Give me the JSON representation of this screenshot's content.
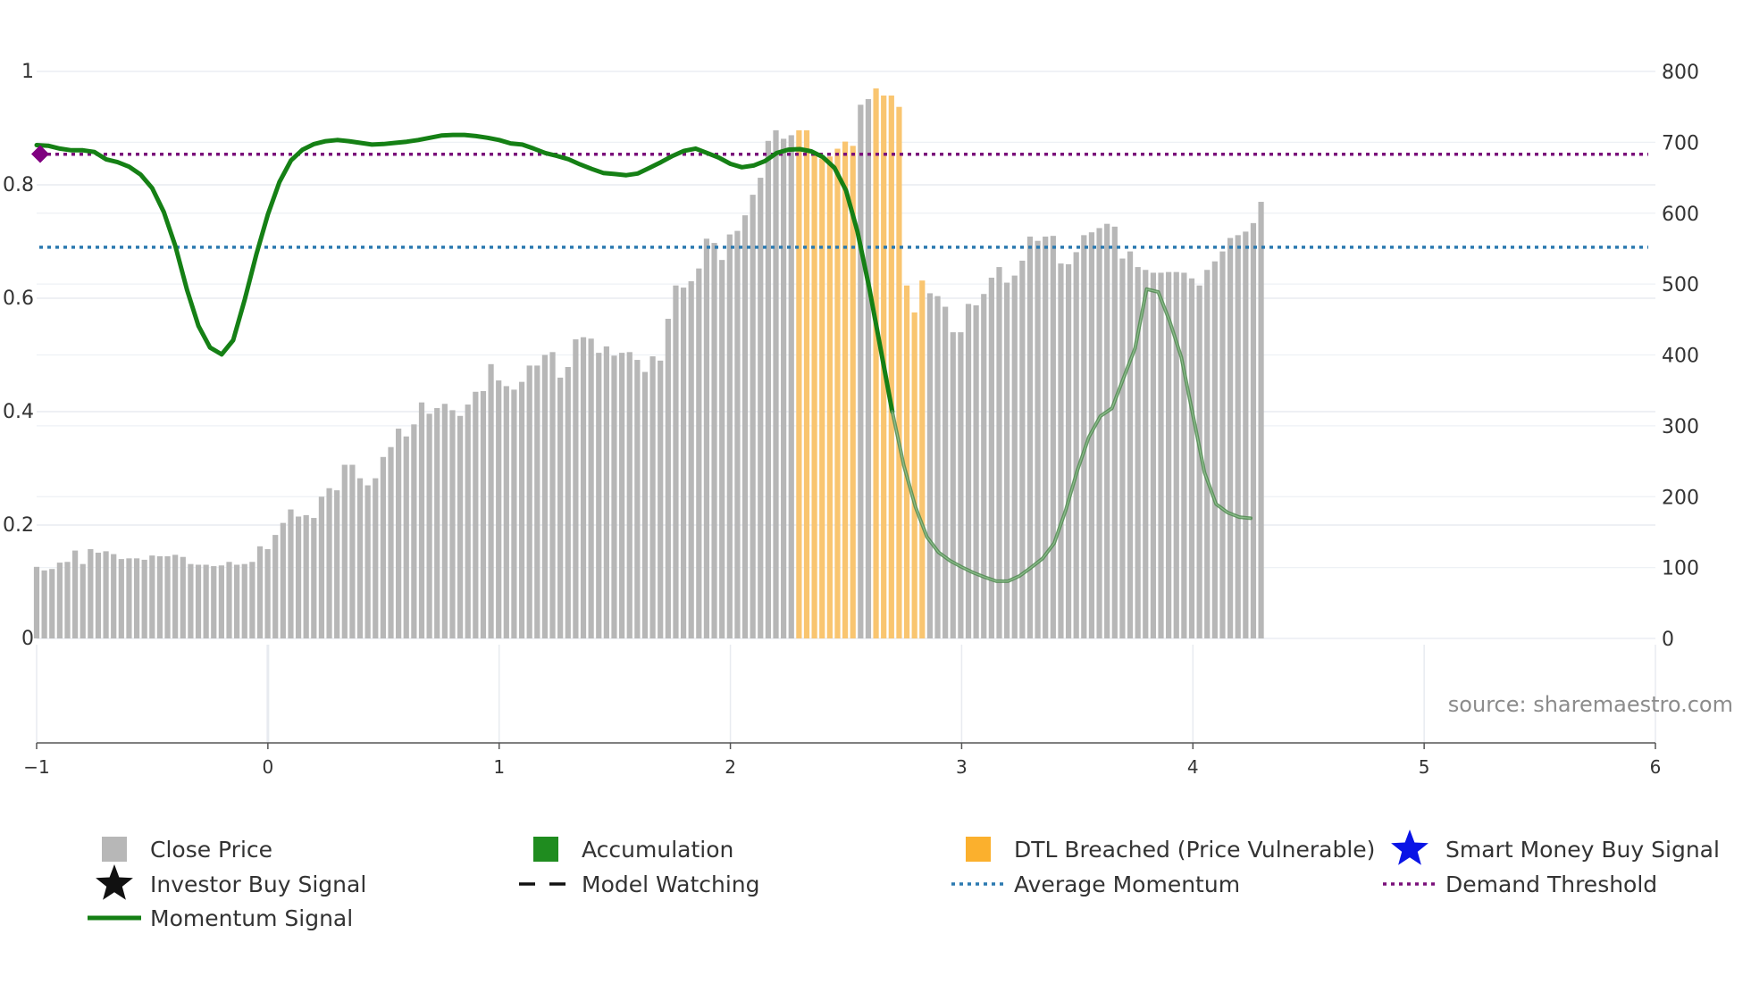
{
  "chart_data": {
    "type": "bar+line",
    "source_text": "source: sharemaestro.com",
    "x_axis": {
      "range": [
        -1,
        6
      ],
      "ticks": [
        -1,
        0,
        1,
        2,
        3,
        4,
        5,
        6
      ],
      "tick_labels": [
        "−1",
        "0",
        "1",
        "2",
        "3",
        "4",
        "5",
        "6"
      ]
    },
    "left_axis": {
      "range": [
        0,
        1
      ],
      "ticks": [
        0,
        0.2,
        0.4,
        0.6,
        0.8,
        1
      ],
      "tick_labels": [
        "0",
        "0.2",
        "0.4",
        "0.6",
        "0.8",
        "1"
      ]
    },
    "right_axis": {
      "range": [
        0,
        800
      ],
      "ticks": [
        0,
        100,
        200,
        300,
        400,
        500,
        600,
        700,
        800
      ],
      "tick_labels": [
        "0",
        "100",
        "200",
        "300",
        "400",
        "500",
        "600",
        "700",
        "800"
      ]
    },
    "close_price": {
      "x_start": -1,
      "x_step": 0.0333,
      "values": [
        101,
        96,
        98,
        107,
        108,
        124,
        105,
        126,
        121,
        123,
        119,
        112,
        113,
        113,
        111,
        117,
        116,
        116,
        118,
        115,
        105,
        104,
        104,
        102,
        103,
        108,
        104,
        105,
        108,
        130,
        126,
        146,
        163,
        182,
        172,
        174,
        170,
        200,
        212,
        209,
        245,
        245,
        226,
        216,
        226,
        256,
        270,
        296,
        285,
        302,
        333,
        317,
        325,
        331,
        322,
        314,
        330,
        348,
        349,
        387,
        364,
        356,
        351,
        362,
        385,
        385,
        400,
        404,
        368,
        383,
        422,
        425,
        423,
        403,
        412,
        399,
        403,
        404,
        393,
        376,
        398,
        392,
        451,
        498,
        495,
        504,
        522,
        564,
        558,
        534,
        570,
        575,
        597,
        626,
        650,
        702,
        717,
        705,
        710,
        717,
        717,
        682,
        677,
        680,
        691,
        701,
        695,
        753,
        761,
        776,
        766,
        766,
        750,
        498,
        460,
        505,
        487,
        483,
        468,
        432,
        432,
        472,
        470,
        486,
        509,
        524,
        502,
        512,
        533,
        567,
        561,
        567,
        568,
        529,
        528,
        545,
        569,
        573,
        579,
        585,
        581,
        536,
        546,
        524,
        520,
        516,
        516,
        517,
        517,
        516,
        508,
        498,
        520,
        532,
        546,
        565,
        569,
        574,
        586,
        616
      ],
      "dtl_breached_ranges": [
        [
          99,
          106
        ],
        [
          109,
          115
        ]
      ]
    },
    "momentum_signal": {
      "x_start": -1,
      "x_step": 0.05,
      "values": [
        0.87,
        0.869,
        0.864,
        0.861,
        0.861,
        0.858,
        0.845,
        0.84,
        0.832,
        0.818,
        0.794,
        0.752,
        0.692,
        0.615,
        0.551,
        0.513,
        0.501,
        0.526,
        0.598,
        0.677,
        0.748,
        0.805,
        0.843,
        0.862,
        0.872,
        0.877,
        0.879,
        0.877,
        0.874,
        0.871,
        0.872,
        0.874,
        0.876,
        0.879,
        0.883,
        0.887,
        0.888,
        0.888,
        0.886,
        0.883,
        0.879,
        0.873,
        0.871,
        0.864,
        0.856,
        0.851,
        0.845,
        0.836,
        0.828,
        0.821,
        0.819,
        0.817,
        0.82,
        0.83,
        0.84,
        0.851,
        0.86,
        0.864,
        0.856,
        0.848,
        0.837,
        0.831,
        0.834,
        0.842,
        0.856,
        0.862,
        0.863,
        0.859,
        0.849,
        0.83,
        0.79,
        0.717,
        0.619,
        0.51,
        0.4,
        0.305,
        0.232,
        0.179,
        0.152,
        0.137,
        0.126,
        0.116,
        0.108,
        0.101,
        0.101,
        0.11,
        0.125,
        0.141,
        0.168,
        0.226,
        0.296,
        0.355,
        0.392,
        0.406,
        0.459,
        0.512,
        0.616,
        0.611,
        0.559,
        0.496,
        0.394,
        0.293,
        0.237,
        0.222,
        0.214,
        0.212
      ],
      "segment_break_index": 74
    },
    "thresholds": {
      "demand_threshold": 0.854,
      "average_momentum": 0.69
    },
    "colors": {
      "price": "#b7b7b7",
      "dtl": "#f9c570",
      "momentum": "#158015",
      "average": "#2c7ab0",
      "demand": "#7a0f7a",
      "marker": "#800080"
    },
    "legend": [
      {
        "label": "Close Price",
        "symbol": "grey-square"
      },
      {
        "label": "Accumulation",
        "symbol": "green-square"
      },
      {
        "label": "DTL Breached (Price Vulnerable)",
        "symbol": "orange-square"
      },
      {
        "label": "Smart Money Buy Signal",
        "symbol": "blue-star"
      },
      {
        "label": "Investor Buy Signal",
        "symbol": "black-star"
      },
      {
        "label": "Model Watching",
        "symbol": "black-dash"
      },
      {
        "label": "Average Momentum",
        "symbol": "blue-dot"
      },
      {
        "label": "Demand Threshold",
        "symbol": "purple-dot"
      },
      {
        "label": "Momentum Signal",
        "symbol": "green-line"
      }
    ]
  }
}
